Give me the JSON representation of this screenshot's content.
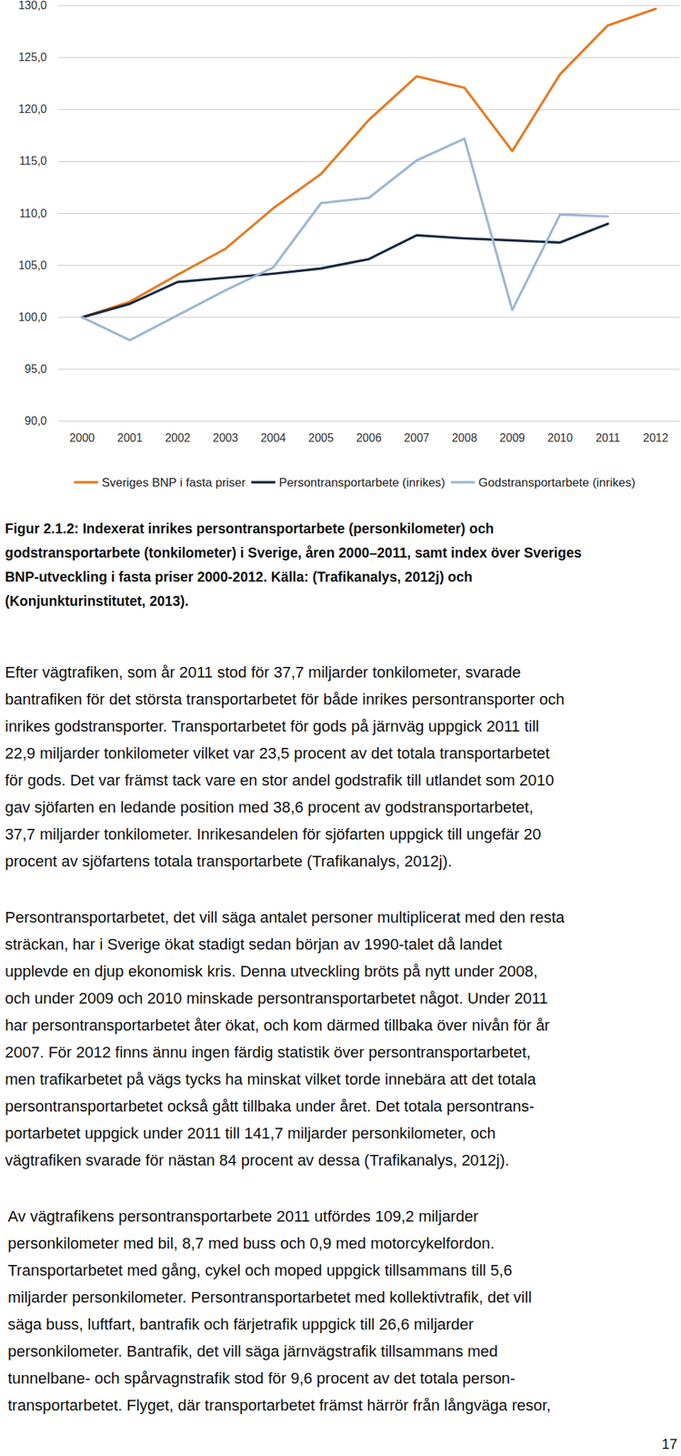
{
  "chart_data": {
    "type": "line",
    "categories": [
      "2000",
      "2001",
      "2002",
      "2003",
      "2004",
      "2005",
      "2006",
      "2007",
      "2008",
      "2009",
      "2010",
      "2011",
      "2012"
    ],
    "series": [
      {
        "name": "Sveriges BNP i fasta priser",
        "color": "#e47c25",
        "values": [
          100,
          101.5,
          104.1,
          106.6,
          110.5,
          113.8,
          119.0,
          123.2,
          122.1,
          116.0,
          123.4,
          128.1,
          129.7
        ]
      },
      {
        "name": "Persontransportarbete (inrikes)",
        "color": "#1b2a41",
        "values": [
          100,
          101.3,
          103.4,
          103.8,
          104.2,
          104.7,
          105.6,
          107.9,
          107.6,
          107.4,
          107.2,
          109.0,
          null
        ]
      },
      {
        "name": "Godstransportarbete (inrikes)",
        "color": "#9db7d5",
        "values": [
          100,
          97.8,
          100.2,
          102.6,
          104.8,
          111.0,
          111.5,
          115.1,
          117.2,
          100.7,
          109.9,
          109.7,
          null
        ]
      }
    ],
    "ylim": [
      90,
      130
    ],
    "yticks": [
      {
        "value": 90,
        "label": "90,0"
      },
      {
        "value": 95,
        "label": "95,0"
      },
      {
        "value": 100,
        "label": "100,0"
      },
      {
        "value": 105,
        "label": "105,0"
      },
      {
        "value": 110,
        "label": "110,0"
      },
      {
        "value": 115,
        "label": "115,0"
      },
      {
        "value": 120,
        "label": "120,0"
      },
      {
        "value": 125,
        "label": "125,0"
      },
      {
        "value": 130,
        "label": "130,0"
      }
    ],
    "grid": true,
    "legend": "bottom"
  },
  "caption": [
    "Figur 2.1.2: Indexerat inrikes persontransportarbete (personkilometer) och",
    "godstransportarbete (tonkilometer) i Sverige, åren 2000–2011, samt index över Sveriges",
    "BNP-utveckling i fasta priser 2000-2012. Källa: (Trafikanalys, 2012j) och",
    "(Konjunkturinstitutet, 2013)."
  ],
  "paragraphs": [
    [
      "Efter vägtrafiken, som år 2011 stod för 37,7 miljarder tonkilometer, svarade",
      "bantrafiken för det största transportarbetet för både inrikes persontransporter och",
      "inrikes godstransporter. Transportarbetet för gods på järnväg uppgick 2011 till",
      "22,9 miljarder tonkilometer vilket var 23,5 procent av det totala transportarbetet",
      "för gods. Det var främst tack vare en stor andel godstrafik till utlandet som 2010",
      "gav sjöfarten en ledande position med 38,6 procent av godstransportarbetet,",
      "37,7 miljarder tonkilometer. Inrikesandelen för sjöfarten uppgick till ungefär 20",
      "procent av sjöfartens totala transportarbete (Trafikanalys, 2012j)."
    ],
    [
      "Persontransportarbetet, det vill säga antalet personer multiplicerat med den resta",
      "sträckan, har i Sverige ökat stadigt sedan början av 1990-talet då landet",
      "upplevde en djup ekonomisk kris. Denna utveckling bröts på nytt under 2008,",
      "och under 2009 och 2010 minskade persontransportarbetet något. Under 2011",
      "har persontransportarbetet åter ökat, och kom därmed tillbaka över nivån för år",
      "2007. För 2012 finns ännu ingen färdig statistik över persontransportarbetet,",
      "men trafikarbetet på vägs tycks ha minskat vilket torde innebära att det totala",
      "persontransportarbetet också gått tillbaka under året. Det totala persontrans-",
      "portarbetet uppgick under 2011 till 141,7 miljarder personkilometer, och",
      "vägtrafiken svarade för nästan 84 procent av dessa (Trafikanalys, 2012j)."
    ],
    [
      "Av vägtrafikens persontransportarbete 2011 utfördes 109,2 miljarder",
      "personkilometer med bil, 8,7 med buss och 0,9 med motorcykelfordon.",
      "Transportarbetet med gång, cykel och moped uppgick tillsammans till 5,6",
      "miljarder personkilometer. Persontransportarbetet med kollektivtrafik, det vill",
      "säga buss, luftfart, bantrafik och färjetrafik uppgick till 26,6 miljarder",
      "personkilometer.  Bantrafik, det vill säga järnvägstrafik tillsammans med",
      "tunnelbane- och spårvagnstrafik stod för 9,6 procent av det totala person-",
      "transportarbetet. Flyget, där transportarbetet främst härrör från långväga resor,"
    ]
  ],
  "page_number": "17"
}
